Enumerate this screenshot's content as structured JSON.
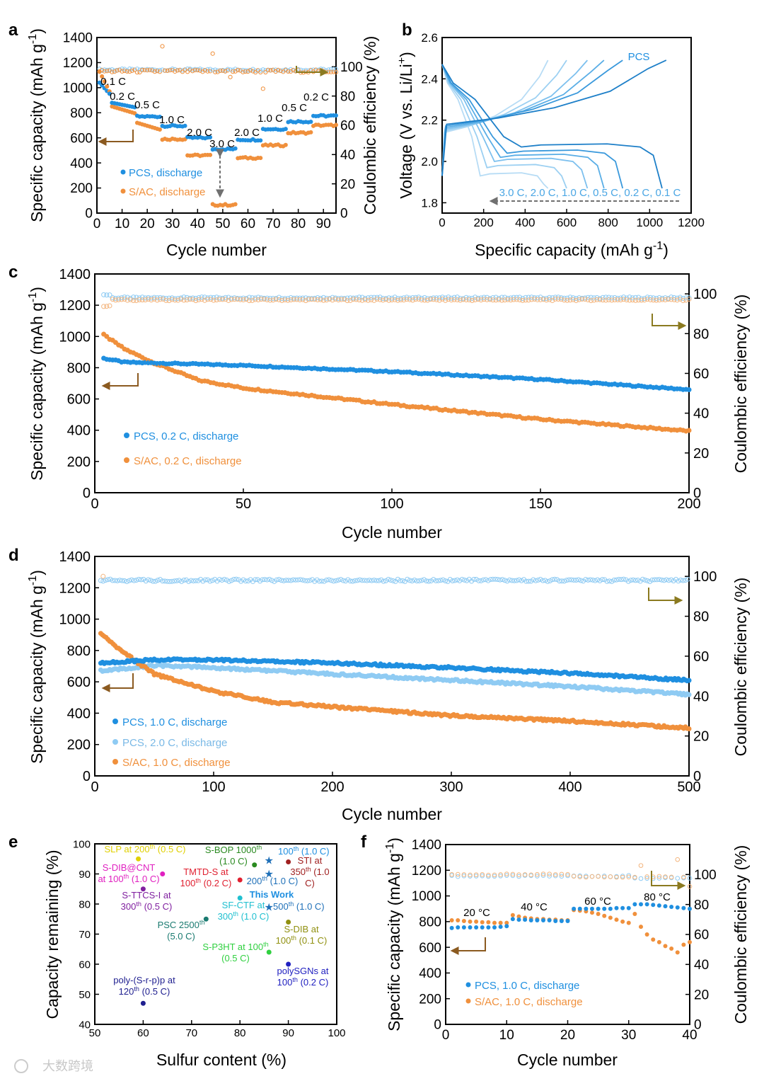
{
  "watermark": "大数跨境",
  "colors": {
    "pcs": "#1f8fe0",
    "pcs_light": "#8fcbf3",
    "sac": "#f0903c",
    "arrow_brown": "#8b5a20",
    "arrow_olive": "#8b7a20",
    "arrow_gray": "#707070"
  },
  "chart_data": [
    {
      "panel": "a",
      "type": "scatter",
      "xlabel": "Cycle number",
      "ylabel": "Specific capacity (mAh g-1)",
      "y2label": "Coulombic efficiency (%)",
      "xlim": [
        0,
        95
      ],
      "ylim": [
        0,
        1400
      ],
      "y2lim": [
        0,
        120
      ],
      "xticks": [
        "0",
        "10",
        "20",
        "30",
        "40",
        "50",
        "60",
        "70",
        "80",
        "90"
      ],
      "yticks": [
        "0",
        "200",
        "400",
        "600",
        "800",
        "1000",
        "1200",
        "1400"
      ],
      "y2ticks": [
        "0",
        "20",
        "40",
        "60",
        "80",
        "100"
      ],
      "legend": [
        "PCS, discharge",
        "S/AC, discharge"
      ],
      "rate_labels": [
        "0.1 C",
        "0.2 C",
        "0.5 C",
        "1.0 C",
        "2.0 C",
        "3.0 C",
        "2.0 C",
        "1.0 C",
        "0.5 C",
        "0.2 C"
      ],
      "segments": [
        {
          "start": 1,
          "end": 5,
          "pcs": 1040,
          "sac": 1060
        },
        {
          "start": 6,
          "end": 15,
          "pcs": 860,
          "sac": 820
        },
        {
          "start": 16,
          "end": 25,
          "pcs": 770,
          "sac": 690
        },
        {
          "start": 26,
          "end": 35,
          "pcs": 695,
          "sac": 590
        },
        {
          "start": 36,
          "end": 45,
          "pcs": 600,
          "sac": 460
        },
        {
          "start": 46,
          "end": 55,
          "pcs": 510,
          "sac": 65
        },
        {
          "start": 56,
          "end": 65,
          "pcs": 585,
          "sac": 440
        },
        {
          "start": 66,
          "end": 75,
          "pcs": 670,
          "sac": 540
        },
        {
          "start": 76,
          "end": 85,
          "pcs": 730,
          "sac": 640
        },
        {
          "start": 86,
          "end": 95,
          "pcs": 775,
          "sac": 700
        }
      ],
      "ce_pcs": 98,
      "ce_sac": 97
    },
    {
      "panel": "b",
      "type": "line",
      "xlabel": "Specific capacity (mAh g-1)",
      "ylabel": "Voltage (V vs. Li/Li+)",
      "xlim": [
        0,
        1200
      ],
      "ylim": [
        1.75,
        2.6
      ],
      "xticks": [
        "0",
        "200",
        "400",
        "600",
        "800",
        "1000",
        "1200"
      ],
      "yticks": [
        "1.8",
        "2.0",
        "2.2",
        "2.4",
        "2.6"
      ],
      "legend_text": "3.0 C, 2.0 C, 1.0 C, 0.5 C, 0.2 C, 0.1 C",
      "label": "PCS",
      "curves": [
        {
          "rate": "3.0 C",
          "discharge_capacity": 510,
          "plateau": 1.94,
          "charge_capacity": 510
        },
        {
          "rate": "2.0 C",
          "discharge_capacity": 600,
          "plateau": 1.98,
          "charge_capacity": 600
        },
        {
          "rate": "1.0 C",
          "discharge_capacity": 700,
          "plateau": 2.01,
          "charge_capacity": 700
        },
        {
          "rate": "0.5 C",
          "discharge_capacity": 780,
          "plateau": 2.03,
          "charge_capacity": 780
        },
        {
          "rate": "0.2 C",
          "discharge_capacity": 870,
          "plateau": 2.05,
          "charge_capacity": 870
        },
        {
          "rate": "0.1 C",
          "discharge_capacity": 1060,
          "plateau": 2.08,
          "charge_capacity": 1080
        }
      ]
    },
    {
      "panel": "c",
      "type": "scatter",
      "xlabel": "Cycle number",
      "ylabel": "Specific capacity (mAh g-1)",
      "y2label": "Coulombic efficiency (%)",
      "xlim": [
        0,
        200
      ],
      "ylim": [
        0,
        1400
      ],
      "y2lim": [
        0,
        110
      ],
      "xticks": [
        "0",
        "50",
        "100",
        "150",
        "200"
      ],
      "yticks": [
        "0",
        "200",
        "400",
        "600",
        "800",
        "1000",
        "1200",
        "1400"
      ],
      "y2ticks": [
        "0",
        "20",
        "40",
        "60",
        "80",
        "100"
      ],
      "legend": [
        "PCS, 0.2 C, discharge",
        "S/AC, 0.2 C, discharge"
      ],
      "series": [
        {
          "name": "PCS, 0.2 C, discharge",
          "x": [
            3,
            10,
            20,
            50,
            100,
            150,
            200
          ],
          "y": [
            860,
            835,
            830,
            815,
            775,
            725,
            660
          ]
        },
        {
          "name": "S/AC, 0.2 C, discharge",
          "x": [
            3,
            10,
            20,
            35,
            50,
            100,
            150,
            200
          ],
          "y": [
            1010,
            920,
            830,
            720,
            670,
            565,
            470,
            395
          ]
        }
      ],
      "ce_pcs": 98,
      "ce_sac": 97
    },
    {
      "panel": "d",
      "type": "scatter",
      "xlabel": "Cycle number",
      "ylabel": "Specific capacity (mAh g-1)",
      "y2label": "Coulombic efficiency (%)",
      "xlim": [
        0,
        500
      ],
      "ylim": [
        0,
        1400
      ],
      "y2lim": [
        0,
        110
      ],
      "xticks": [
        "0",
        "100",
        "200",
        "300",
        "400",
        "500"
      ],
      "yticks": [
        "0",
        "200",
        "400",
        "600",
        "800",
        "1000",
        "1200",
        "1400"
      ],
      "y2ticks": [
        "0",
        "20",
        "40",
        "60",
        "80",
        "100"
      ],
      "legend": [
        "PCS, 1.0 C, discharge",
        "PCS, 2.0 C, discharge",
        "S/AC, 1.0 C, discharge"
      ],
      "series": [
        {
          "name": "PCS, 1.0 C, discharge",
          "x": [
            5,
            50,
            100,
            200,
            300,
            400,
            500
          ],
          "y": [
            720,
            740,
            740,
            720,
            690,
            655,
            610
          ]
        },
        {
          "name": "PCS, 2.0 C, discharge",
          "x": [
            5,
            50,
            100,
            200,
            300,
            400,
            500
          ],
          "y": [
            670,
            705,
            690,
            650,
            610,
            570,
            520
          ]
        },
        {
          "name": "S/AC, 1.0 C, discharge",
          "x": [
            5,
            20,
            50,
            100,
            150,
            200,
            300,
            400,
            500
          ],
          "y": [
            910,
            810,
            650,
            540,
            470,
            440,
            385,
            350,
            305
          ]
        }
      ],
      "ce_pcs": 98,
      "ce_sac": 99
    },
    {
      "panel": "e",
      "type": "scatter",
      "xlabel": "Sulfur content (%)",
      "ylabel": "Capacity remaining (%)",
      "xlim": [
        50,
        100
      ],
      "ylim": [
        40,
        100
      ],
      "xticks": [
        "50",
        "60",
        "70",
        "80",
        "90",
        "100"
      ],
      "yticks": [
        "40",
        "50",
        "60",
        "70",
        "80",
        "90",
        "100"
      ],
      "points": [
        {
          "x": 59,
          "y": 95,
          "color": "#e0d000",
          "text": [
            "SLP at 200th (0.5 C)"
          ]
        },
        {
          "x": 64,
          "y": 90,
          "color": "#e020c0",
          "text": [
            "S-DIB@CNT",
            "at 100th (1.0 C)"
          ]
        },
        {
          "x": 60,
          "y": 85,
          "color": "#8020a0",
          "text": [
            "S-TTCS-I at",
            "300th (0.5 C)"
          ]
        },
        {
          "x": 83,
          "y": 93,
          "color": "#2a8a20",
          "text": [
            "S-BOP 1000th",
            "(1.0 C)"
          ]
        },
        {
          "x": 80,
          "y": 88,
          "color": "#e02030",
          "text": [
            "TMTD-S at",
            "100th (0.2 C)"
          ]
        },
        {
          "x": 90,
          "y": 94,
          "color": "#a02020",
          "text": [
            "STI at",
            "350th (1.0",
            "C)"
          ]
        },
        {
          "x": 73,
          "y": 75,
          "color": "#1a7a70",
          "text": [
            "PSC 2500th",
            "(5.0 C)"
          ]
        },
        {
          "x": 80,
          "y": 82,
          "color": "#20c0d0",
          "text": [
            "SF-CTF at",
            "300th (1.0 C)"
          ]
        },
        {
          "x": 86,
          "y": 64,
          "color": "#30d040",
          "text": [
            "S-P3HT at 100th",
            "(0.5 C)"
          ]
        },
        {
          "x": 90,
          "y": 74,
          "color": "#909010",
          "text": [
            "S-DIB at",
            "100th (0.1 C)"
          ]
        },
        {
          "x": 90,
          "y": 60,
          "color": "#2020c0",
          "text": [
            "polySGNs at",
            "100th (0.2 C)"
          ]
        },
        {
          "x": 60,
          "y": 47,
          "color": "#202090",
          "text": [
            "poly-(S-r-p)p at",
            "120th (0.5 C)"
          ]
        }
      ],
      "this_work": {
        "label": "This Work",
        "color": "#1f70b8",
        "stars": [
          {
            "x": 86,
            "y": 94.5,
            "text": "100th (1.0 C)"
          },
          {
            "x": 86,
            "y": 90,
            "text": "200th (1.0 C)"
          },
          {
            "x": 86,
            "y": 79,
            "text": "500th (1.0 C)"
          }
        ]
      }
    },
    {
      "panel": "f",
      "type": "scatter",
      "xlabel": "Cycle number",
      "ylabel": "Specific capacity (mAh g-1)",
      "y2label": "Coulombic efficiency (%)",
      "xlim": [
        0,
        40
      ],
      "ylim": [
        0,
        1400
      ],
      "y2lim": [
        0,
        120
      ],
      "xticks": [
        "0",
        "10",
        "20",
        "30",
        "40"
      ],
      "yticks": [
        "0",
        "200",
        "400",
        "600",
        "800",
        "1000",
        "1200",
        "1400"
      ],
      "y2ticks": [
        "0",
        "20",
        "40",
        "60",
        "80",
        "100"
      ],
      "legend": [
        "PCS, 1.0 C, discharge",
        "S/AC, 1.0 C, discharge"
      ],
      "temp_labels": [
        "20 °C",
        "40 °C",
        "60 °C",
        "80 °C"
      ],
      "pcs": [
        750,
        755,
        755,
        755,
        755,
        755,
        755,
        755,
        760,
        765,
        820,
        815,
        815,
        810,
        810,
        810,
        810,
        805,
        805,
        805,
        900,
        900,
        900,
        900,
        900,
        900,
        900,
        905,
        905,
        905,
        935,
        935,
        935,
        930,
        925,
        920,
        915,
        910,
        905,
        900
      ],
      "sac": [
        810,
        810,
        805,
        800,
        800,
        795,
        795,
        790,
        790,
        790,
        850,
        840,
        830,
        825,
        820,
        820,
        815,
        815,
        810,
        810,
        890,
        885,
        880,
        870,
        860,
        845,
        830,
        815,
        800,
        790,
        860,
        760,
        700,
        660,
        640,
        610,
        590,
        560,
        620,
        640
      ],
      "ce_pcs": 99,
      "ce_sac": 100
    }
  ]
}
